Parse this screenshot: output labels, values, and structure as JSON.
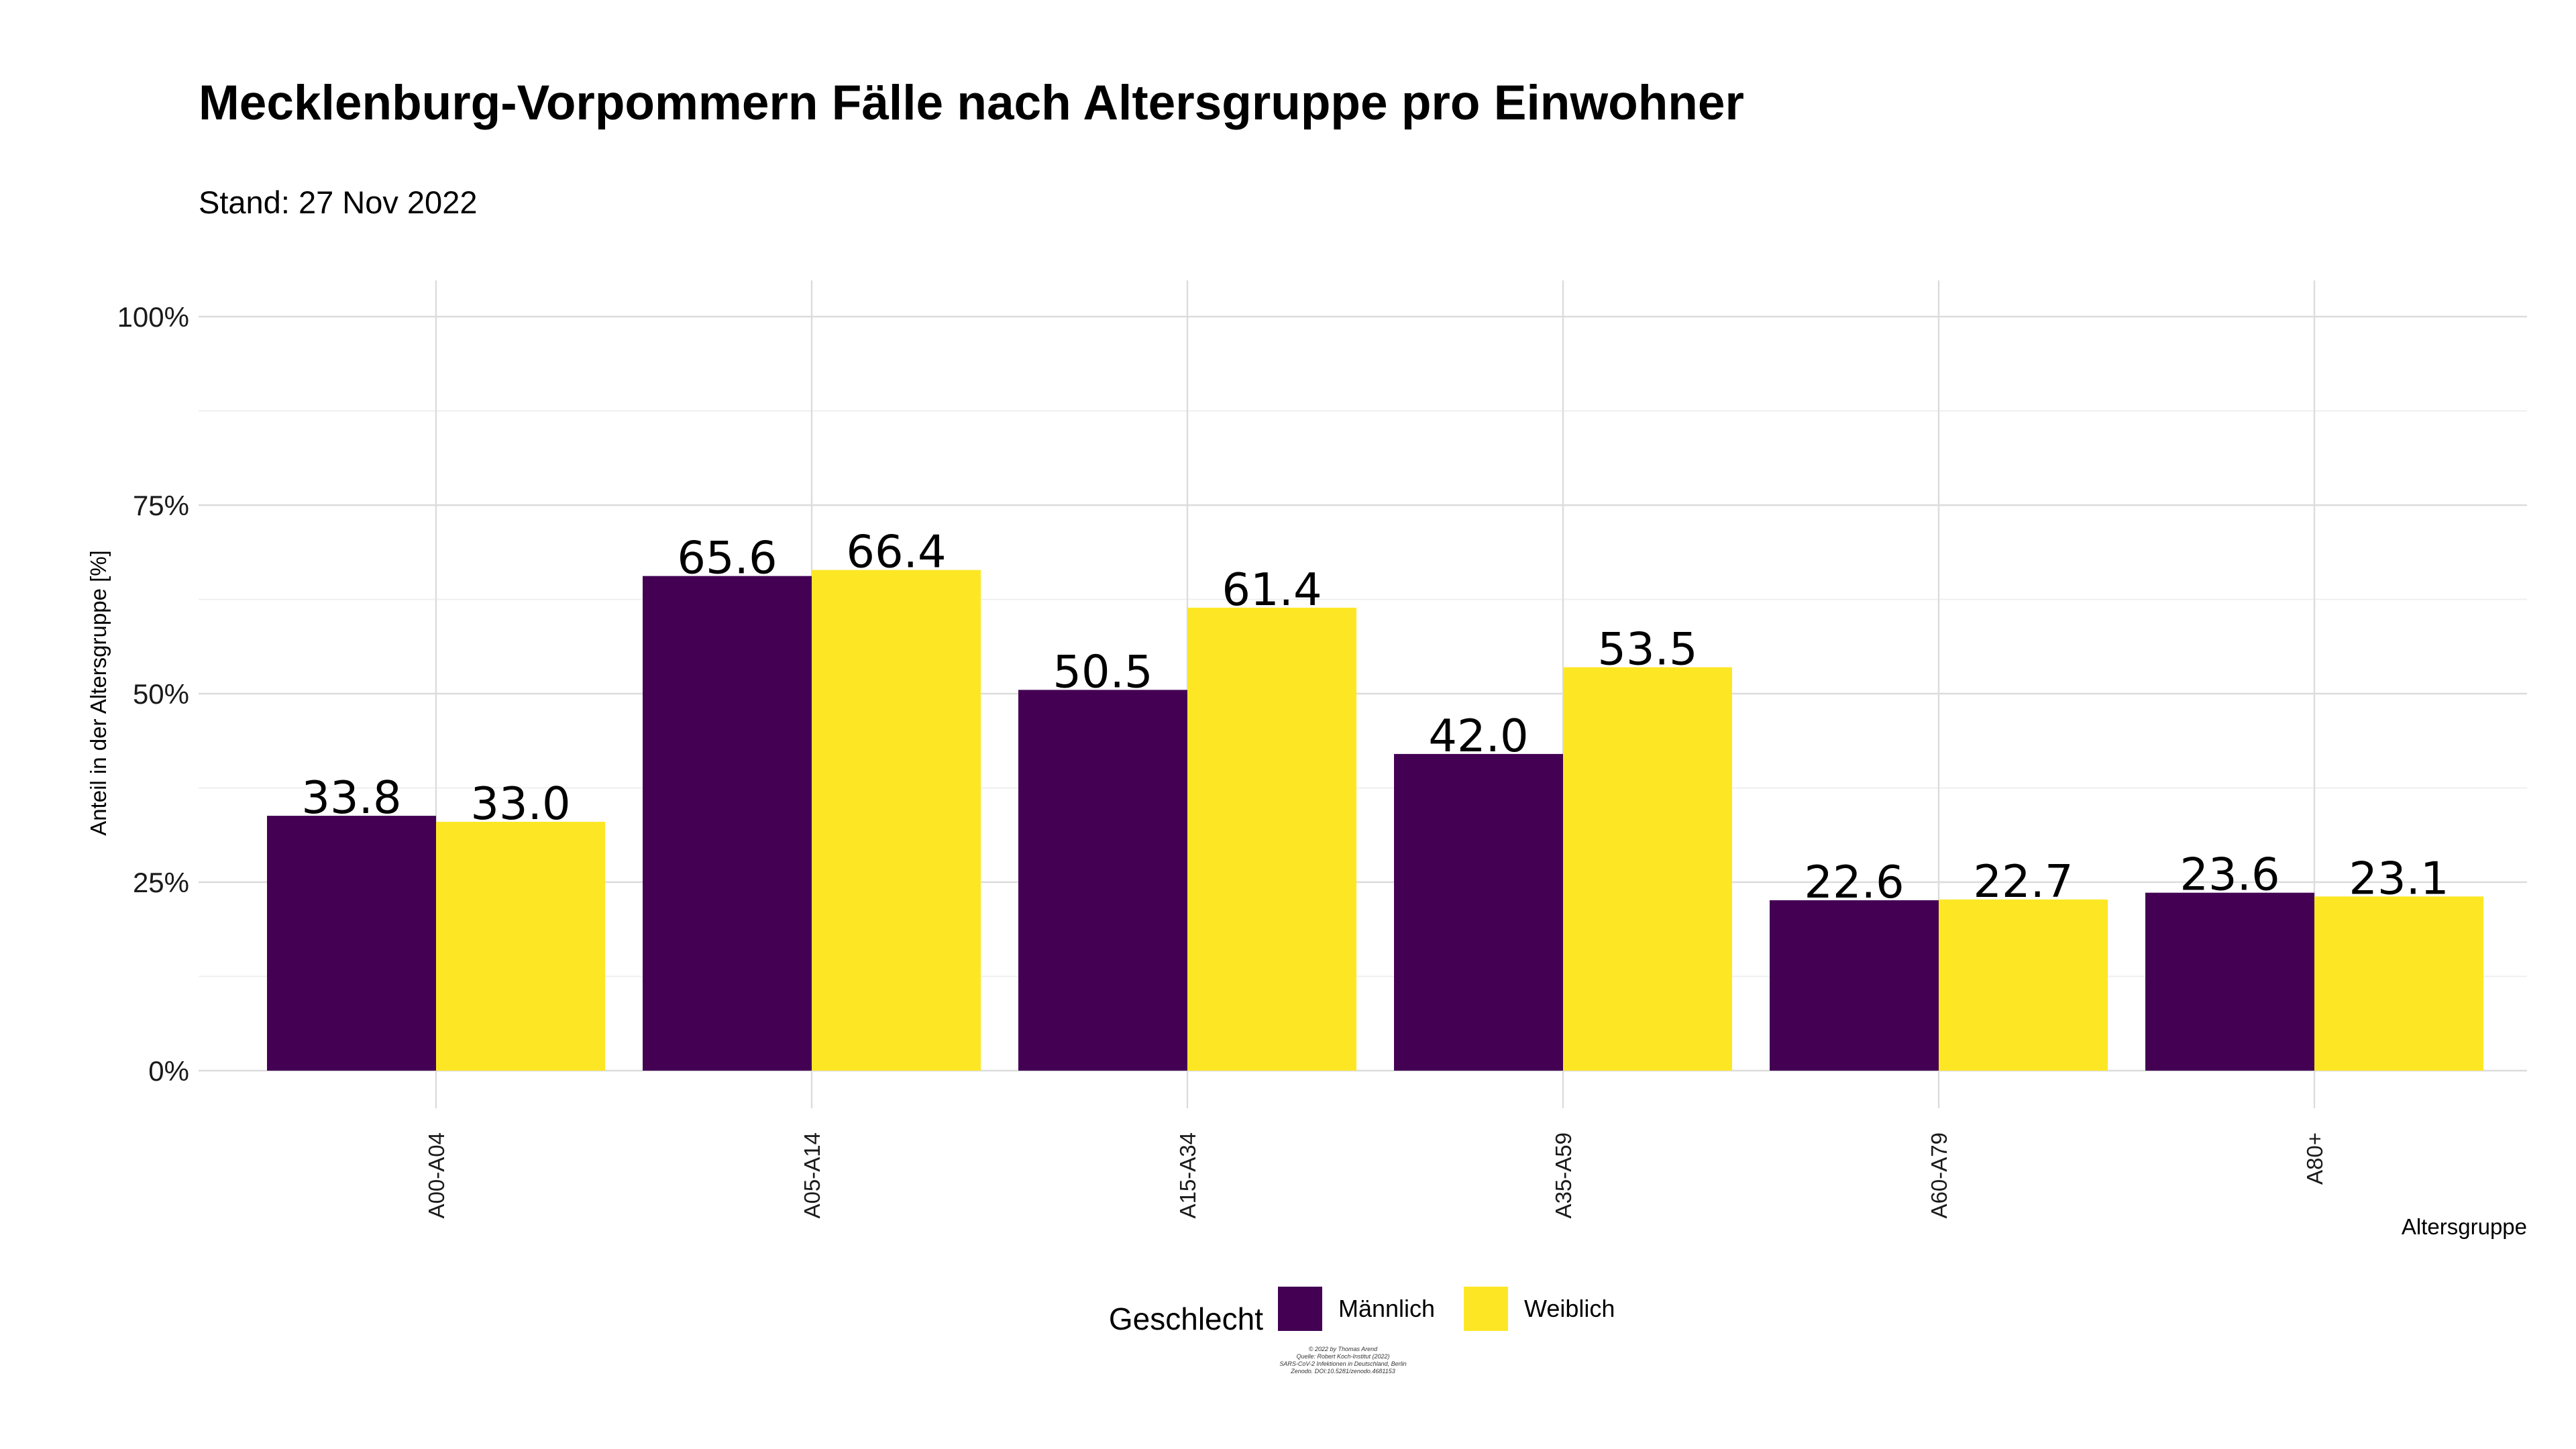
{
  "chart_data": {
    "type": "bar",
    "title": "Mecklenburg-Vorpommern Fälle nach Altersgruppe pro Einwohner",
    "subtitle": "Stand: 27 Nov 2022",
    "xlabel": "Altersgruppe",
    "ylabel": "Anteil in der Altersgruppe [%]",
    "categories": [
      "A00-A04",
      "A05-A14",
      "A15-A34",
      "A35-A59",
      "A60-A79",
      "A80+"
    ],
    "series": [
      {
        "name": "Männlich",
        "color": "#440154",
        "values": [
          33.8,
          65.6,
          50.5,
          42.0,
          22.6,
          23.6
        ]
      },
      {
        "name": "Weiblich",
        "color": "#FDE725",
        "values": [
          33.0,
          66.4,
          61.4,
          53.5,
          22.7,
          23.1
        ]
      }
    ],
    "ylim": [
      0,
      100
    ],
    "yticks": [
      0,
      25,
      50,
      75,
      100
    ],
    "ytick_labels": [
      "0%",
      "25%",
      "50%",
      "75%",
      "100%"
    ],
    "grid": true,
    "legend": {
      "title": "Geschlecht",
      "position": "bottom"
    },
    "caption": [
      "© 2022 by Thomas Arend",
      "Quelle: Robert Koch-Institut (2022)",
      "SARS-CoV-2 Infektionen in Deutschland, Berlin",
      "Zenodo. DOI:10.5281/zenodo.4681153"
    ]
  }
}
